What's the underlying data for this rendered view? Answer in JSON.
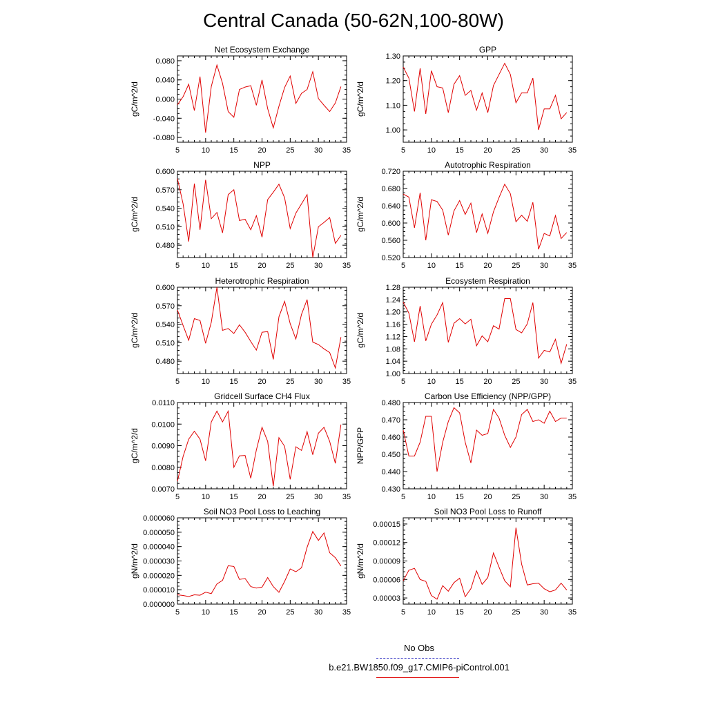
{
  "title": "Central Canada (50-62N,100-80W)",
  "colors": {
    "model": "#e00000",
    "obs": "#5555cc",
    "axis": "#000000"
  },
  "legend": [
    {
      "label": "No Obs",
      "style": "dashed"
    },
    {
      "label": "b.e21.BW1850.f09_g17.CMIP6-piControl.001",
      "style": "solid"
    }
  ],
  "chart_data": [
    {
      "type": "line",
      "title": "Net Ecosystem Exchange",
      "ylabel": "gC/m^2/d",
      "xlim": [
        5,
        35
      ],
      "xticks": [
        5,
        10,
        15,
        20,
        25,
        30,
        35
      ],
      "ylim": [
        -0.09,
        0.09
      ],
      "yticks": [
        -0.08,
        -0.04,
        0.0,
        0.04,
        0.08
      ],
      "ytick_labels": [
        "-0.080",
        "-0.040",
        "0.000",
        "0.040",
        "0.080"
      ],
      "x": [
        5,
        6,
        7,
        8,
        9,
        10,
        11,
        12,
        13,
        14,
        15,
        16,
        17,
        18,
        19,
        20,
        21,
        22,
        23,
        24,
        25,
        26,
        27,
        28,
        29,
        30,
        31,
        32,
        33,
        34
      ],
      "series": [
        {
          "values": [
            -0.012,
            0.005,
            0.031,
            -0.024,
            0.047,
            -0.07,
            0.026,
            0.071,
            0.033,
            -0.026,
            -0.038,
            0.02,
            0.025,
            0.028,
            -0.013,
            0.04,
            -0.02,
            -0.06,
            -0.015,
            0.024,
            0.048,
            -0.009,
            0.012,
            0.02,
            0.057,
            0.001,
            -0.013,
            -0.026,
            -0.008,
            0.026
          ]
        }
      ]
    },
    {
      "type": "line",
      "title": "GPP",
      "ylabel": "gC/m^2/d",
      "xlim": [
        5,
        35
      ],
      "xticks": [
        5,
        10,
        15,
        20,
        25,
        30,
        35
      ],
      "ylim": [
        0.95,
        1.3
      ],
      "yticks": [
        1.0,
        1.1,
        1.2,
        1.3
      ],
      "ytick_labels": [
        "1.00",
        "1.10",
        "1.20",
        "1.30"
      ],
      "x": [
        5,
        6,
        7,
        8,
        9,
        10,
        11,
        12,
        13,
        14,
        15,
        16,
        17,
        18,
        19,
        20,
        21,
        22,
        23,
        24,
        25,
        26,
        27,
        28,
        29,
        30,
        31,
        32,
        33,
        34
      ],
      "series": [
        {
          "values": [
            1.255,
            1.21,
            1.075,
            1.25,
            1.065,
            1.24,
            1.175,
            1.17,
            1.07,
            1.185,
            1.22,
            1.14,
            1.16,
            1.08,
            1.15,
            1.07,
            1.18,
            1.225,
            1.27,
            1.225,
            1.11,
            1.15,
            1.15,
            1.21,
            1.0,
            1.085,
            1.085,
            1.14,
            1.045,
            1.07
          ]
        }
      ]
    },
    {
      "type": "line",
      "title": "NPP",
      "ylabel": "gC/m^2/d",
      "xlim": [
        5,
        35
      ],
      "xticks": [
        5,
        10,
        15,
        20,
        25,
        30,
        35
      ],
      "ylim": [
        0.46,
        0.6
      ],
      "yticks": [
        0.48,
        0.51,
        0.54,
        0.57,
        0.6
      ],
      "ytick_labels": [
        "0.480",
        "0.510",
        "0.540",
        "0.570",
        "0.600"
      ],
      "x": [
        5,
        6,
        7,
        8,
        9,
        10,
        11,
        12,
        13,
        14,
        15,
        16,
        17,
        18,
        19,
        20,
        21,
        22,
        23,
        24,
        25,
        26,
        27,
        28,
        29,
        30,
        31,
        32,
        33,
        34
      ],
      "series": [
        {
          "values": [
            0.588,
            0.547,
            0.486,
            0.58,
            0.505,
            0.586,
            0.523,
            0.533,
            0.5,
            0.562,
            0.57,
            0.52,
            0.522,
            0.505,
            0.528,
            0.493,
            0.554,
            0.566,
            0.579,
            0.557,
            0.507,
            0.532,
            0.547,
            0.562,
            0.46,
            0.51,
            0.517,
            0.525,
            0.483,
            0.496
          ]
        }
      ]
    },
    {
      "type": "line",
      "title": "Autotrophic Respiration",
      "ylabel": "gC/m^2/d",
      "xlim": [
        5,
        35
      ],
      "xticks": [
        5,
        10,
        15,
        20,
        25,
        30,
        35
      ],
      "ylim": [
        0.52,
        0.72
      ],
      "yticks": [
        0.52,
        0.56,
        0.6,
        0.64,
        0.68,
        0.72
      ],
      "ytick_labels": [
        "0.520",
        "0.560",
        "0.600",
        "0.640",
        "0.680",
        "0.720"
      ],
      "x": [
        5,
        6,
        7,
        8,
        9,
        10,
        11,
        12,
        13,
        14,
        15,
        16,
        17,
        18,
        19,
        20,
        21,
        22,
        23,
        24,
        25,
        26,
        27,
        28,
        29,
        30,
        31,
        32,
        33,
        34
      ],
      "series": [
        {
          "values": [
            0.667,
            0.66,
            0.589,
            0.67,
            0.56,
            0.654,
            0.65,
            0.63,
            0.572,
            0.628,
            0.652,
            0.62,
            0.646,
            0.578,
            0.621,
            0.576,
            0.626,
            0.659,
            0.69,
            0.668,
            0.603,
            0.618,
            0.604,
            0.648,
            0.539,
            0.576,
            0.57,
            0.617,
            0.564,
            0.578
          ]
        }
      ]
    },
    {
      "type": "line",
      "title": "Heterotrophic Respiration",
      "ylabel": "gC/m^2/d",
      "xlim": [
        5,
        35
      ],
      "xticks": [
        5,
        10,
        15,
        20,
        25,
        30,
        35
      ],
      "ylim": [
        0.46,
        0.6
      ],
      "yticks": [
        0.48,
        0.51,
        0.54,
        0.57,
        0.6
      ],
      "ytick_labels": [
        "0.480",
        "0.510",
        "0.540",
        "0.570",
        "0.600"
      ],
      "x": [
        5,
        6,
        7,
        8,
        9,
        10,
        11,
        12,
        13,
        14,
        15,
        16,
        17,
        18,
        19,
        20,
        21,
        22,
        23,
        24,
        25,
        26,
        27,
        28,
        29,
        30,
        31,
        32,
        33,
        34
      ],
      "series": [
        {
          "values": [
            0.563,
            0.538,
            0.514,
            0.549,
            0.546,
            0.509,
            0.543,
            0.6,
            0.53,
            0.533,
            0.525,
            0.539,
            0.527,
            0.512,
            0.498,
            0.527,
            0.528,
            0.483,
            0.552,
            0.577,
            0.541,
            0.516,
            0.556,
            0.58,
            0.511,
            0.507,
            0.5,
            0.494,
            0.469,
            0.519
          ]
        }
      ]
    },
    {
      "type": "line",
      "title": "Ecosystem Respiration",
      "ylabel": "gC/m^2/d",
      "xlim": [
        5,
        35
      ],
      "xticks": [
        5,
        10,
        15,
        20,
        25,
        30,
        35
      ],
      "ylim": [
        1.0,
        1.28
      ],
      "yticks": [
        1.0,
        1.04,
        1.08,
        1.12,
        1.16,
        1.2,
        1.24,
        1.28
      ],
      "ytick_labels": [
        "1.00",
        "1.04",
        "1.08",
        "1.12",
        "1.16",
        "1.20",
        "1.24",
        "1.28"
      ],
      "x": [
        5,
        6,
        7,
        8,
        9,
        10,
        11,
        12,
        13,
        14,
        15,
        16,
        17,
        18,
        19,
        20,
        21,
        22,
        23,
        24,
        25,
        26,
        27,
        28,
        29,
        30,
        31,
        32,
        33,
        34
      ],
      "series": [
        {
          "values": [
            1.232,
            1.196,
            1.103,
            1.219,
            1.106,
            1.16,
            1.19,
            1.23,
            1.101,
            1.163,
            1.178,
            1.161,
            1.176,
            1.09,
            1.122,
            1.103,
            1.155,
            1.144,
            1.243,
            1.243,
            1.143,
            1.132,
            1.161,
            1.23,
            1.05,
            1.075,
            1.07,
            1.111,
            1.033,
            1.095
          ]
        }
      ]
    },
    {
      "type": "line",
      "title": "Gridcell Surface CH4 Flux",
      "ylabel": "gC/m^2/d",
      "xlim": [
        5,
        35
      ],
      "xticks": [
        5,
        10,
        15,
        20,
        25,
        30,
        35
      ],
      "ylim": [
        0.007,
        0.011
      ],
      "yticks": [
        0.007,
        0.008,
        0.009,
        0.01,
        0.011
      ],
      "ytick_labels": [
        "0.0070",
        "0.0080",
        "0.0090",
        "0.0100",
        "0.0110"
      ],
      "x": [
        5,
        6,
        7,
        8,
        9,
        10,
        11,
        12,
        13,
        14,
        15,
        16,
        17,
        18,
        19,
        20,
        21,
        22,
        23,
        24,
        25,
        26,
        27,
        28,
        29,
        30,
        31,
        32,
        33,
        34
      ],
      "series": [
        {
          "values": [
            0.00735,
            0.0085,
            0.0093,
            0.00967,
            0.0093,
            0.0083,
            0.0101,
            0.0106,
            0.0101,
            0.0106,
            0.008,
            0.00853,
            0.00855,
            0.00749,
            0.0088,
            0.00985,
            0.0092,
            0.00712,
            0.00937,
            0.00897,
            0.00744,
            0.00895,
            0.00878,
            0.00965,
            0.00858,
            0.00958,
            0.00985,
            0.0092,
            0.00818,
            0.00998
          ]
        }
      ]
    },
    {
      "type": "line",
      "title": "Carbon Use Efficiency (NPP/GPP)",
      "ylabel": "NPP/GPP",
      "xlim": [
        5,
        35
      ],
      "xticks": [
        5,
        10,
        15,
        20,
        25,
        30,
        35
      ],
      "ylim": [
        0.43,
        0.48
      ],
      "yticks": [
        0.43,
        0.44,
        0.45,
        0.46,
        0.47,
        0.48
      ],
      "ytick_labels": [
        "0.430",
        "0.440",
        "0.450",
        "0.460",
        "0.470",
        "0.480"
      ],
      "x": [
        5,
        6,
        7,
        8,
        9,
        10,
        11,
        12,
        13,
        14,
        15,
        16,
        17,
        18,
        19,
        20,
        21,
        22,
        23,
        24,
        25,
        26,
        27,
        28,
        29,
        30,
        31,
        32,
        33,
        34
      ],
      "series": [
        {
          "values": [
            0.464,
            0.449,
            0.449,
            0.457,
            0.472,
            0.472,
            0.44,
            0.457,
            0.469,
            0.477,
            0.474,
            0.457,
            0.445,
            0.464,
            0.461,
            0.462,
            0.476,
            0.471,
            0.461,
            0.454,
            0.46,
            0.473,
            0.476,
            0.469,
            0.47,
            0.468,
            0.475,
            0.469,
            0.471,
            0.471
          ]
        }
      ]
    },
    {
      "type": "line",
      "title": "Soil NO3 Pool Loss to Leaching",
      "ylabel": "gN/m^2/d",
      "xlim": [
        5,
        35
      ],
      "xticks": [
        5,
        10,
        15,
        20,
        25,
        30,
        35
      ],
      "ylim": [
        0.0,
        6e-05
      ],
      "yticks": [
        0.0,
        1e-05,
        2e-05,
        3e-05,
        4e-05,
        5e-05,
        6e-05
      ],
      "ytick_labels": [
        "0.000000",
        "0.000010",
        "0.000020",
        "0.000030",
        "0.000040",
        "0.000050",
        "0.000060"
      ],
      "x": [
        5,
        6,
        7,
        8,
        9,
        10,
        11,
        12,
        13,
        14,
        15,
        16,
        17,
        18,
        19,
        20,
        21,
        22,
        23,
        24,
        25,
        26,
        27,
        28,
        29,
        30,
        31,
        32,
        33,
        34
      ],
      "series": [
        {
          "values": [
            6.5e-06,
            6e-06,
            5.3e-06,
            6.5e-06,
            6.2e-06,
            8.3e-06,
            7.3e-06,
            1.4e-05,
            1.65e-05,
            2.67e-05,
            2.62e-05,
            1.72e-05,
            1.78e-05,
            1.22e-05,
            1.12e-05,
            1.18e-05,
            1.85e-05,
            1.22e-05,
            8.2e-06,
            1.58e-05,
            2.45e-05,
            2.25e-05,
            2.53e-05,
            3.95e-05,
            5.05e-05,
            4.43e-05,
            4.95e-05,
            3.57e-05,
            3.23e-05,
            2.65e-05
          ]
        }
      ]
    },
    {
      "type": "line",
      "title": "Soil NO3 Pool Loss to Runoff",
      "ylabel": "gN/m^2/d",
      "xlim": [
        5,
        35
      ],
      "xticks": [
        5,
        10,
        15,
        20,
        25,
        30,
        35
      ],
      "ylim": [
        2e-05,
        0.00016
      ],
      "yticks": [
        3e-05,
        6e-05,
        9e-05,
        0.00012,
        0.00015
      ],
      "ytick_labels": [
        "0.00003",
        "0.00006",
        "0.00009",
        "0.00012",
        "0.00015"
      ],
      "x": [
        5,
        6,
        7,
        8,
        9,
        10,
        11,
        12,
        13,
        14,
        15,
        16,
        17,
        18,
        19,
        20,
        21,
        22,
        23,
        24,
        25,
        26,
        27,
        28,
        29,
        30,
        31,
        32,
        33,
        34
      ],
      "series": [
        {
          "values": [
            5.8e-05,
            7.5e-05,
            7.8e-05,
            6e-05,
            5.7e-05,
            3.4e-05,
            2.8e-05,
            5e-05,
            4.1e-05,
            5.5e-05,
            6.2e-05,
            3.2e-05,
            4.5e-05,
            7.4e-05,
            5.2e-05,
            6.3e-05,
            0.000103,
            8e-05,
            5.8e-05,
            4.8e-05,
            0.000144,
            8.5e-05,
            5.1e-05,
            5.3e-05,
            5.4e-05,
            4.5e-05,
            4e-05,
            4.3e-05,
            5.4e-05,
            4.3e-05
          ]
        }
      ]
    }
  ]
}
